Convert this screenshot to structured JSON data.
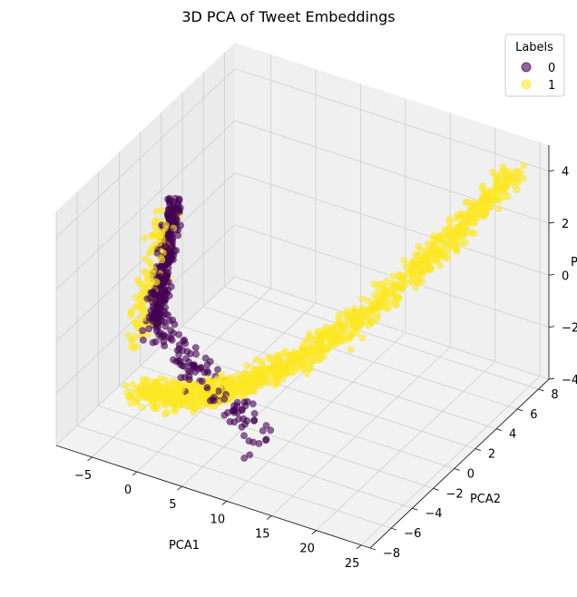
{
  "chart_data": {
    "type": "scatter",
    "projection": "3d",
    "title": "3D PCA of Tweet Embeddings",
    "xlabel": "PCA1",
    "ylabel": "PCA2",
    "zlabel": "P",
    "xlim": [
      -9,
      26
    ],
    "ylim": [
      -8,
      9
    ],
    "zlim": [
      -4,
      5
    ],
    "xticks": [
      "−5",
      "0",
      "5",
      "10",
      "15",
      "20",
      "25"
    ],
    "yticks": [
      "−8",
      "−6",
      "−4",
      "−2",
      "0",
      "2",
      "4",
      "6",
      "8"
    ],
    "zticks": [
      "−4",
      "−2",
      "0",
      "2",
      "4"
    ],
    "grid": true,
    "legend": {
      "title": "Labels",
      "placement": "top-right"
    },
    "series": [
      {
        "name": "0",
        "color": "#440154",
        "alpha": 0.6,
        "x_range": [
          -7,
          3
        ],
        "x_mean": -5.5,
        "y_range": [
          -5,
          1
        ],
        "z_range": [
          -3,
          2.5
        ],
        "approx_points": 420
      },
      {
        "name": "1",
        "color": "#fde725",
        "alpha": 0.6,
        "x_range": [
          -7,
          25
        ],
        "y_range": [
          -6,
          8
        ],
        "z_range": [
          -3,
          4.6
        ],
        "approx_points": 1300
      }
    ]
  }
}
